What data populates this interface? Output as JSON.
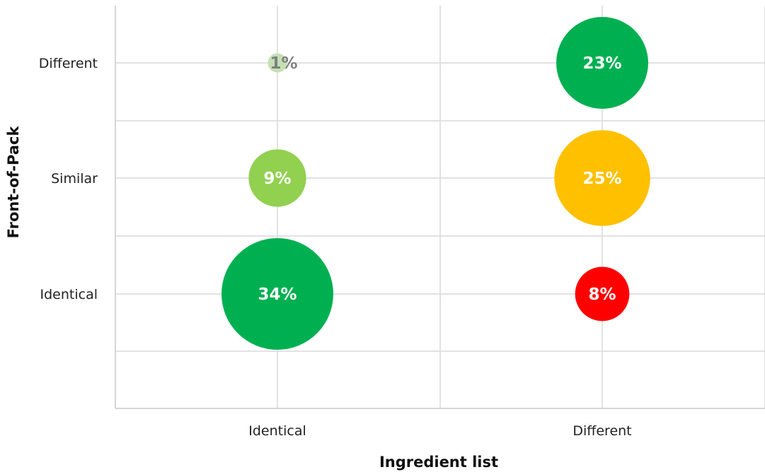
{
  "chart_data": {
    "type": "bubble",
    "title": "",
    "xlabel": "Ingredient list",
    "ylabel": "Front-of-Pack",
    "x_categories": [
      "Identical",
      "Different"
    ],
    "y_categories": [
      "Identical",
      "Similar",
      "Different"
    ],
    "grid": true,
    "points": [
      {
        "x": "Identical",
        "y": "Different",
        "value": 1,
        "label": "1%",
        "color": "#c5e0b4",
        "text_color": "#808080"
      },
      {
        "x": "Different",
        "y": "Different",
        "value": 23,
        "label": "23%",
        "color": "#00b050",
        "text_color": "#ffffff"
      },
      {
        "x": "Identical",
        "y": "Similar",
        "value": 9,
        "label": "9%",
        "color": "#92d050",
        "text_color": "#ffffff"
      },
      {
        "x": "Different",
        "y": "Similar",
        "value": 25,
        "label": "25%",
        "color": "#ffc000",
        "text_color": "#ffffff"
      },
      {
        "x": "Identical",
        "y": "Identical",
        "value": 34,
        "label": "34%",
        "color": "#00b050",
        "text_color": "#ffffff"
      },
      {
        "x": "Different",
        "y": "Identical",
        "value": 8,
        "label": "8%",
        "color": "#ff0000",
        "text_color": "#ffffff"
      }
    ]
  }
}
